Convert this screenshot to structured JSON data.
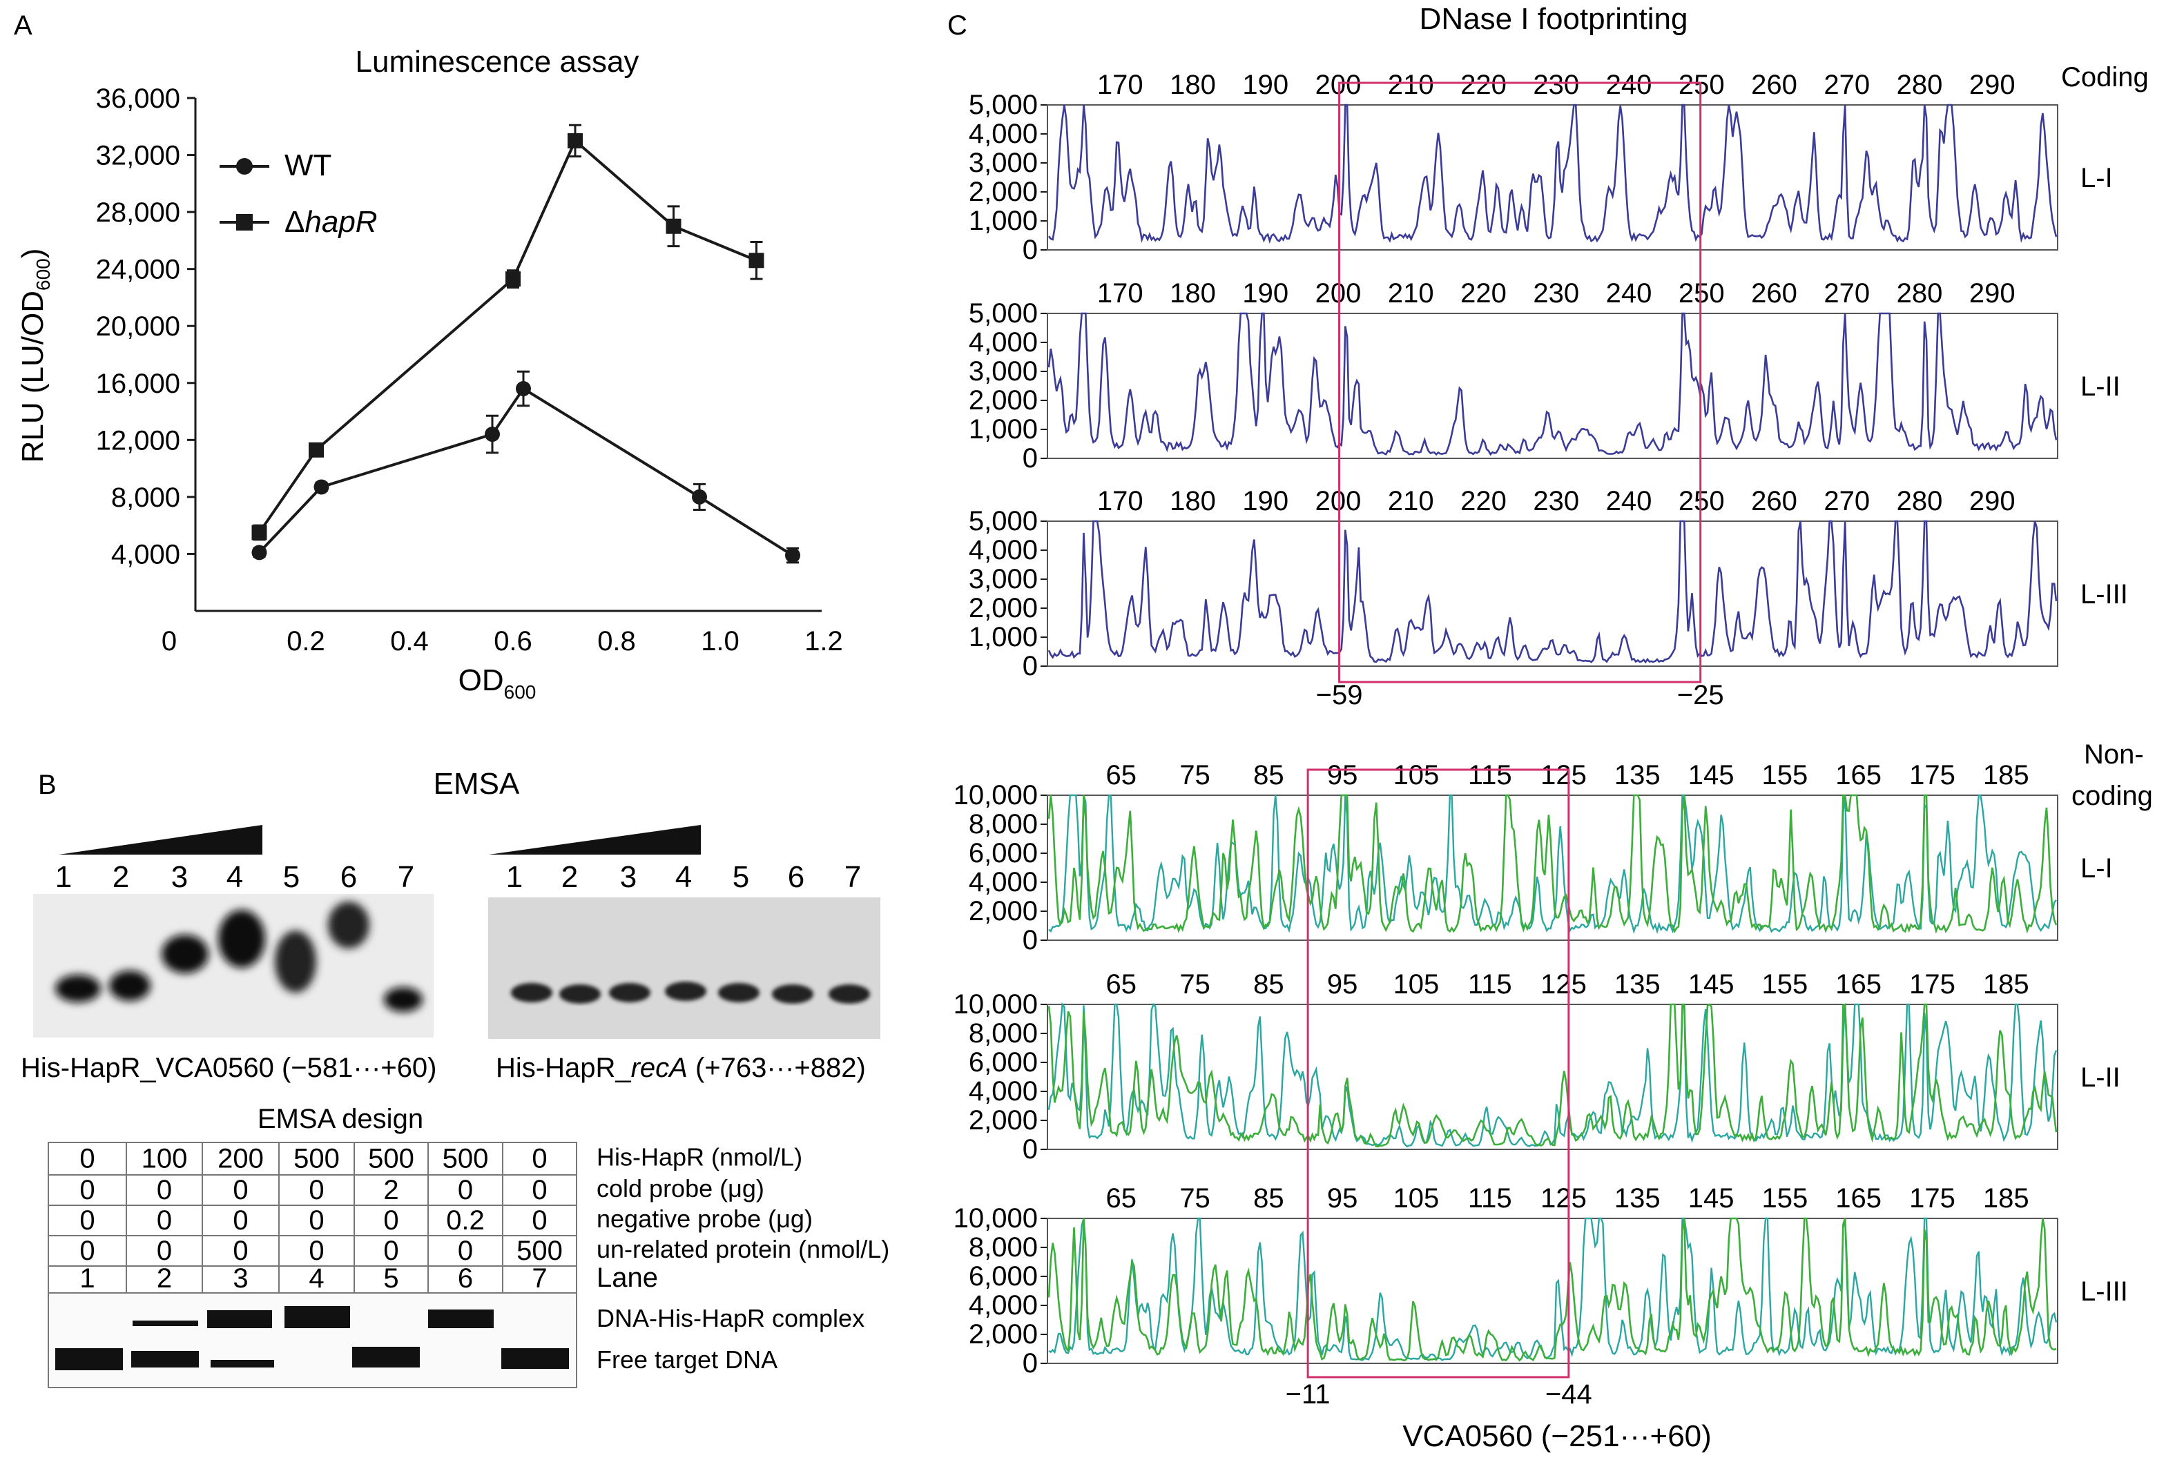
{
  "panels": {
    "a": "A",
    "b": "B",
    "c": "C"
  },
  "lum": {
    "title": "Luminescence assay",
    "ylabel": "RLU (LU/OD",
    "ylabel_sub": "600",
    "ylabel_end": ")",
    "xlabel": "OD",
    "xlabel_sub": "600",
    "legend": {
      "wt": "WT",
      "hapr_prefix": "Δ",
      "hapr_name": "hapR"
    }
  },
  "chart_data": [
    {
      "type": "line",
      "title": "Luminescence assay",
      "xlabel": "OD600",
      "ylabel": "RLU (LU/OD600)",
      "xlim": [
        0,
        1.2
      ],
      "ylim": [
        0,
        36000
      ],
      "x_ticks": [
        "0",
        "0.2",
        "0.4",
        "0.6",
        "0.8",
        "1.0",
        "1.2"
      ],
      "y_ticks": [
        "4,000",
        "8,000",
        "12,000",
        "16,000",
        "20,000",
        "24,000",
        "28,000",
        "32,000",
        "36,000"
      ],
      "legend_position": "top-left",
      "series": [
        {
          "name": "WT",
          "marker": "circle",
          "points": [
            [
              0.11,
              4100
            ],
            [
              0.23,
              8700
            ],
            [
              0.56,
              12400
            ],
            [
              0.62,
              15600
            ],
            [
              0.96,
              8000
            ],
            [
              1.14,
              3900
            ]
          ],
          "err": [
            300,
            300,
            1300,
            1200,
            900,
            500
          ]
        },
        {
          "name": "ΔhapR",
          "marker": "square",
          "points": [
            [
              0.11,
              5500
            ],
            [
              0.22,
              11300
            ],
            [
              0.6,
              23300
            ],
            [
              0.72,
              33000
            ],
            [
              0.91,
              27000
            ],
            [
              1.07,
              24600
            ]
          ],
          "err": [
            500,
            400,
            600,
            1100,
            1400,
            1300
          ]
        }
      ]
    },
    {
      "type": "line",
      "title": "DNase I footprinting",
      "panel": "Coding",
      "ylim": [
        0,
        5000
      ],
      "y_ticks": [
        "0",
        "1,000",
        "2,000",
        "3,000",
        "4,000",
        "5,000"
      ],
      "x_ticks": [
        "170",
        "180",
        "190",
        "200",
        "210",
        "220",
        "230",
        "240",
        "250",
        "260",
        "270",
        "280",
        "290"
      ],
      "xlim": [
        160,
        299
      ],
      "rows": [
        "L-I",
        "L-II",
        "L-III"
      ],
      "protected_region": [
        203,
        247
      ],
      "protected_labels": [
        "−59",
        "−25"
      ]
    },
    {
      "type": "line",
      "panel": "Non-coding",
      "ylim": [
        0,
        10000
      ],
      "y_ticks": [
        "0",
        "2,000",
        "4,000",
        "6,000",
        "8,000",
        "10,000"
      ],
      "x_ticks": [
        "65",
        "75",
        "85",
        "95",
        "105",
        "115",
        "125",
        "135",
        "145",
        "155",
        "165",
        "175",
        "185"
      ],
      "xlim": [
        55,
        192
      ],
      "rows": [
        "L-I",
        "L-II",
        "L-III"
      ],
      "protected_region": [
        92,
        124
      ],
      "protected_labels": [
        "−11",
        "−44"
      ]
    }
  ],
  "emsa": {
    "title": "EMSA",
    "lanes_left": [
      "1",
      "2",
      "3",
      "4",
      "5",
      "6",
      "7"
    ],
    "lanes_right": [
      "1",
      "2",
      "3",
      "4",
      "5",
      "6",
      "7"
    ],
    "caption_left": "His-HapR_VCA0560 (−581···+60)",
    "caption_right_prefix": "His-HapR_",
    "caption_right_gene": "recA",
    "caption_right_suffix": " (+763···+882)"
  },
  "design": {
    "title": "EMSA design",
    "rows": [
      {
        "label": "His-HapR (nmol/L)",
        "values": [
          "0",
          "100",
          "200",
          "500",
          "500",
          "500",
          "0"
        ]
      },
      {
        "label": "cold probe (μg)",
        "values": [
          "0",
          "0",
          "0",
          "0",
          "2",
          "0",
          "0"
        ]
      },
      {
        "label": "negative probe (μg)",
        "values": [
          "0",
          "0",
          "0",
          "0",
          "0",
          "0.2",
          "0"
        ]
      },
      {
        "label": "un-related protein (nmol/L)",
        "values": [
          "0",
          "0",
          "0",
          "0",
          "0",
          "0",
          "500"
        ]
      },
      {
        "label": "Lane",
        "values": [
          "1",
          "2",
          "3",
          "4",
          "5",
          "6",
          "7"
        ]
      }
    ],
    "complex_label": "DNA-His-HapR complex",
    "free_label": "Free target DNA"
  },
  "footprint": {
    "title": "DNase I footprinting",
    "coding_label": "Coding",
    "noncoding_label_1": "Non-",
    "noncoding_label_2": "coding",
    "footer": "VCA0560 (−251···+60)",
    "colors": {
      "coding_trace": "#3b3b98",
      "noncoding_trace": "#3cae3c",
      "noncoding_accent": "#2aa7a0",
      "box": "#d2306c"
    }
  }
}
